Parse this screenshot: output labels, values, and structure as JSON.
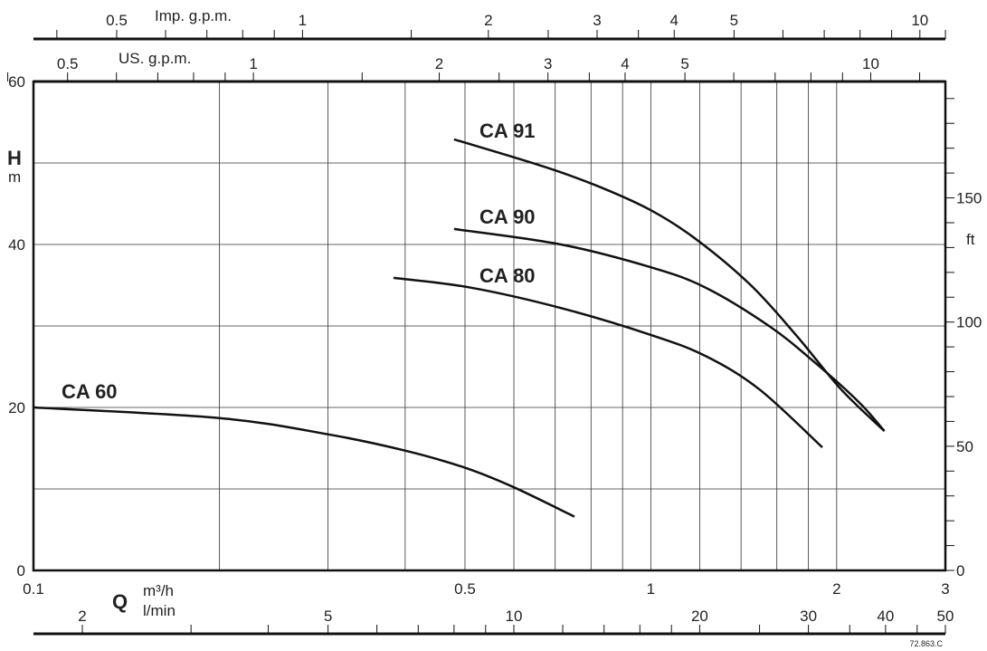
{
  "chart_data": {
    "type": "line",
    "title": "",
    "xscale": "log",
    "xlim": [
      0.1,
      3
    ],
    "ylim": [
      0,
      60
    ],
    "grid": true,
    "x_primary": {
      "unit_label": "m³/h",
      "symbol": "Q",
      "ticks": [
        0.1,
        0.5,
        1,
        2,
        3
      ],
      "gridlines": [
        0.2,
        0.3,
        0.4,
        0.5,
        0.6,
        0.7,
        0.8,
        0.9,
        1,
        1.2,
        1.4,
        1.6,
        1.8,
        2
      ]
    },
    "x_secondary_bottom": {
      "unit_label": "l/min",
      "factor": 16.667,
      "labels": [
        2,
        5,
        10,
        20,
        30,
        40,
        50
      ],
      "ticks": [
        2,
        3,
        4,
        5,
        6,
        7,
        8,
        9,
        10,
        12,
        14,
        16,
        18,
        20,
        25,
        30,
        35,
        40,
        45,
        50
      ]
    },
    "x_top_imp": {
      "unit_label": "Imp. g.p.m.",
      "factor": 3.666,
      "labels": [
        0.5,
        1,
        2,
        3,
        4,
        5,
        10
      ],
      "ticks": [
        0.4,
        0.5,
        0.6,
        0.7,
        0.8,
        0.9,
        1,
        1.5,
        2,
        2.5,
        3,
        3.5,
        4,
        5,
        6,
        7,
        8,
        9,
        10,
        11
      ]
    },
    "x_top_us": {
      "unit_label": "US. g.p.m.",
      "factor": 4.403,
      "labels": [
        0.5,
        1,
        2,
        3,
        4,
        5,
        10
      ],
      "ticks": [
        0.4,
        0.5,
        0.6,
        0.7,
        0.8,
        0.9,
        1,
        1.5,
        2,
        2.5,
        3,
        3.5,
        4,
        5,
        6,
        7,
        8,
        9,
        10,
        12
      ]
    },
    "y_left": {
      "symbol": "H",
      "unit_label": "m",
      "labels": [
        0,
        20,
        40,
        60
      ],
      "gridlines": [
        10,
        20,
        30,
        40,
        50
      ]
    },
    "y_right": {
      "unit_label": "ft",
      "factor": 3.281,
      "labels": [
        0,
        50,
        100,
        150
      ],
      "ticks": [
        0,
        10,
        20,
        30,
        40,
        50,
        60,
        70,
        80,
        90,
        100,
        110,
        120,
        130,
        140,
        150,
        160,
        170,
        180,
        190
      ]
    },
    "series": [
      {
        "name": "CA 91",
        "x": [
          0.48,
          0.668,
          0.818,
          1.0,
          1.186,
          1.452,
          1.718,
          2.034,
          2.39
        ],
        "y": [
          52.9,
          49.6,
          47.2,
          44.2,
          40.6,
          35.0,
          28.9,
          22.2,
          17.1
        ]
      },
      {
        "name": "CA 90",
        "x": [
          0.48,
          0.715,
          1.0,
          1.227,
          1.554,
          1.838,
          2.176,
          2.39
        ],
        "y": [
          41.9,
          40.0,
          37.2,
          34.7,
          30.0,
          25.6,
          20.6,
          17.1
        ]
      },
      {
        "name": "CA 80",
        "x": [
          0.383,
          0.511,
          0.715,
          1.0,
          1.227,
          1.5,
          1.896
        ],
        "y": [
          35.9,
          34.7,
          32.2,
          28.9,
          26.3,
          22.2,
          15.1
        ]
      },
      {
        "name": "CA 60",
        "x": [
          0.1,
          0.2,
          0.3,
          0.4,
          0.5,
          0.6,
          0.752
        ],
        "y": [
          20.0,
          18.7,
          16.7,
          14.7,
          12.6,
          10.2,
          6.6
        ]
      }
    ],
    "annotation": "72.863.C"
  }
}
